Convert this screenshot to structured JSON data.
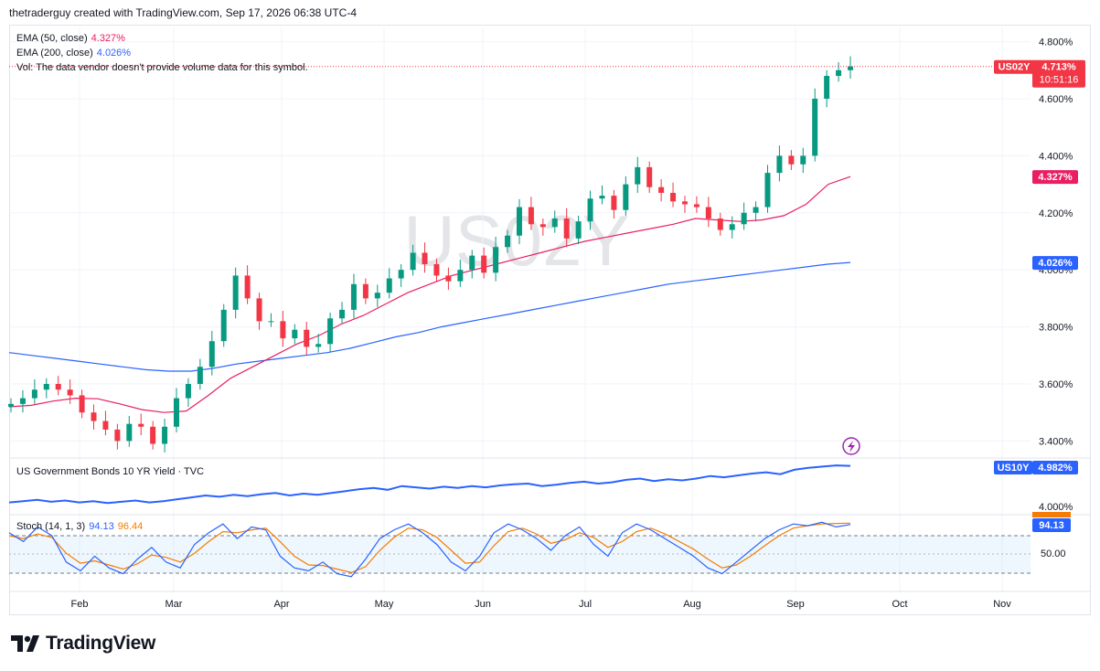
{
  "header": {
    "text": "thetraderguy created with TradingView.com, Sep 17, 2026 06:38 UTC-4"
  },
  "footer": {
    "brand": "TradingView"
  },
  "colors": {
    "up": "#089981",
    "down": "#f23645",
    "ema50": "#e91e63",
    "ema200": "#2962ff",
    "us10y": "#2962ff",
    "stochK": "#2962ff",
    "stochD": "#f57c00",
    "grid": "#f0f3fa"
  },
  "chart_data": [
    {
      "type": "candlestick",
      "symbol_watermark": "US02Y",
      "ylim": [
        3.35,
        4.85
      ],
      "yticks": [
        "4.800%",
        "4.600%",
        "4.400%",
        "4.200%",
        "4.000%",
        "3.800%",
        "3.600%",
        "3.400%"
      ],
      "ytick_values": [
        4.8,
        4.6,
        4.4,
        4.2,
        4.0,
        3.8,
        3.6,
        3.4
      ],
      "xticks": [
        "Feb",
        "Mar",
        "Apr",
        "May",
        "Jun",
        "Jul",
        "Aug",
        "Sep",
        "Oct",
        "Nov"
      ],
      "legend": [
        {
          "label": "EMA (50, close)",
          "value": "4.327%"
        },
        {
          "label": "EMA (200, close)",
          "value": "4.026%"
        },
        {
          "label": "Vol: The data vendor doesn't provide volume data for this symbol.",
          "value": ""
        }
      ],
      "last_price": {
        "symbol": "US02Y",
        "value": "4.713%",
        "countdown": "10:51:16",
        "y": 4.713
      },
      "ema50_label": {
        "value": "4.327%",
        "y": 4.327
      },
      "ema200_label": {
        "value": "4.026%",
        "y": 4.026
      },
      "ema50": [
        3.52,
        3.525,
        3.54,
        3.55,
        3.548,
        3.53,
        3.51,
        3.5,
        3.505,
        3.56,
        3.62,
        3.66,
        3.7,
        3.74,
        3.77,
        3.81,
        3.84,
        3.88,
        3.92,
        3.95,
        3.98,
        4.0,
        4.02,
        4.04,
        4.06,
        4.08,
        4.1,
        4.115,
        4.13,
        4.145,
        4.16,
        4.18,
        4.175,
        4.17,
        4.175,
        4.19,
        4.23,
        4.3,
        4.327
      ],
      "ema200": [
        3.71,
        3.7,
        3.69,
        3.68,
        3.67,
        3.66,
        3.65,
        3.645,
        3.645,
        3.655,
        3.67,
        3.68,
        3.69,
        3.7,
        3.71,
        3.725,
        3.745,
        3.765,
        3.78,
        3.8,
        3.815,
        3.83,
        3.845,
        3.86,
        3.875,
        3.89,
        3.905,
        3.92,
        3.935,
        3.95,
        3.96,
        3.97,
        3.98,
        3.99,
        4.0,
        4.01,
        4.02,
        4.026
      ],
      "closes": [
        3.53,
        3.55,
        3.58,
        3.6,
        3.58,
        3.56,
        3.5,
        3.47,
        3.44,
        3.4,
        3.46,
        3.45,
        3.39,
        3.45,
        3.55,
        3.6,
        3.66,
        3.75,
        3.86,
        3.98,
        3.9,
        3.82,
        3.82,
        3.76,
        3.79,
        3.73,
        3.74,
        3.83,
        3.86,
        3.95,
        3.9,
        3.92,
        3.97,
        4.0,
        4.06,
        4.02,
        3.98,
        3.96,
        4.0,
        4.05,
        3.99,
        4.08,
        4.12,
        4.22,
        4.16,
        4.15,
        4.18,
        4.11,
        4.17,
        4.25,
        4.26,
        4.21,
        4.3,
        4.36,
        4.29,
        4.27,
        4.24,
        4.23,
        4.22,
        4.18,
        4.14,
        4.16,
        4.2,
        4.22,
        4.34,
        4.4,
        4.37,
        4.4,
        4.6,
        4.68,
        4.7,
        4.713
      ]
    },
    {
      "type": "line",
      "legend": "US Government Bonds 10 YR Yield · TVC",
      "ylabel_tick": "4.000%",
      "last_label": {
        "symbol": "US10Y",
        "value": "4.982%"
      },
      "values": [
        4.4,
        4.42,
        4.44,
        4.41,
        4.43,
        4.4,
        4.42,
        4.39,
        4.41,
        4.43,
        4.4,
        4.42,
        4.45,
        4.48,
        4.51,
        4.49,
        4.52,
        4.5,
        4.53,
        4.55,
        4.51,
        4.54,
        4.52,
        4.55,
        4.58,
        4.61,
        4.63,
        4.6,
        4.66,
        4.64,
        4.62,
        4.65,
        4.63,
        4.66,
        4.64,
        4.67,
        4.69,
        4.7,
        4.66,
        4.68,
        4.71,
        4.73,
        4.7,
        4.72,
        4.76,
        4.78,
        4.74,
        4.77,
        4.75,
        4.78,
        4.82,
        4.8,
        4.83,
        4.86,
        4.88,
        4.85,
        4.92,
        4.95,
        4.97,
        4.99,
        4.982
      ]
    },
    {
      "type": "line",
      "legend_label": "Stoch (14, 1, 3)",
      "k_value": "94.13",
      "d_value": "96.44",
      "tick": "50.00",
      "last_label": "94.13",
      "ylim": [
        0,
        100
      ],
      "k": [
        80,
        65,
        90,
        75,
        30,
        15,
        40,
        20,
        10,
        35,
        55,
        30,
        20,
        60,
        80,
        95,
        70,
        90,
        85,
        40,
        20,
        15,
        30,
        10,
        5,
        35,
        70,
        85,
        95,
        80,
        60,
        30,
        15,
        40,
        80,
        95,
        85,
        70,
        50,
        75,
        90,
        60,
        40,
        80,
        95,
        85,
        70,
        55,
        40,
        20,
        10,
        30,
        50,
        70,
        85,
        95,
        92,
        98,
        90,
        94.13
      ],
      "d": [
        75,
        70,
        78,
        72,
        45,
        28,
        32,
        25,
        18,
        27,
        42,
        38,
        30,
        45,
        65,
        82,
        80,
        85,
        88,
        65,
        40,
        25,
        24,
        18,
        12,
        22,
        50,
        72,
        88,
        85,
        72,
        50,
        28,
        30,
        58,
        82,
        88,
        78,
        62,
        68,
        80,
        72,
        55,
        65,
        82,
        88,
        78,
        65,
        52,
        35,
        20,
        25,
        40,
        58,
        75,
        88,
        92,
        95,
        96,
        96.44
      ]
    }
  ]
}
